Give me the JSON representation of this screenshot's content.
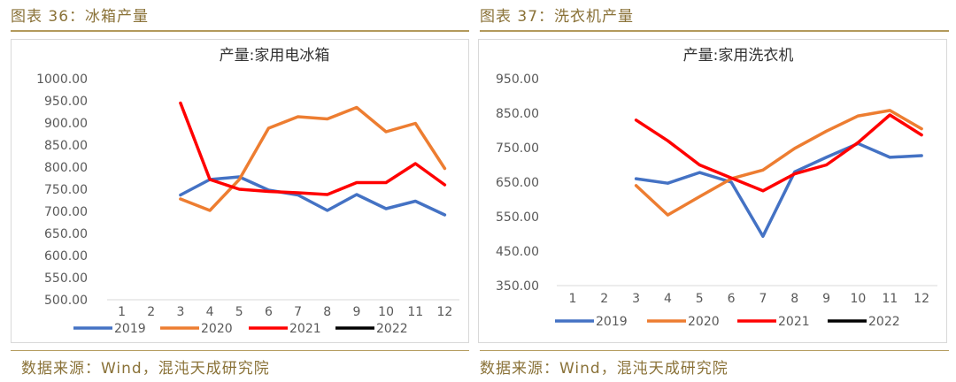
{
  "left": {
    "caption": "图表 36：冰箱产量",
    "source": "数据来源：Wind，混沌天成研究院"
  },
  "right": {
    "caption": "图表 37：洗衣机产量",
    "source": "数据来源：Wind，混沌天成研究院"
  },
  "chart_data": [
    {
      "type": "line",
      "title": "产量:家用电冰箱",
      "xlabel": "",
      "ylabel": "",
      "categories": [
        "1",
        "2",
        "3",
        "4",
        "5",
        "6",
        "7",
        "8",
        "9",
        "10",
        "11",
        "12"
      ],
      "ylim": [
        500,
        1000
      ],
      "yticks": [
        "1000.00",
        "950.00",
        "900.00",
        "850.00",
        "800.00",
        "750.00",
        "700.00",
        "650.00",
        "600.00",
        "550.00",
        "500.00"
      ],
      "legend": "bottom",
      "series": [
        {
          "name": "2019",
          "color": "#4472C4",
          "values": [
            null,
            null,
            737,
            772,
            778,
            748,
            737,
            702,
            738,
            706,
            723,
            692
          ]
        },
        {
          "name": "2020",
          "color": "#ED7D31",
          "values": [
            null,
            null,
            728,
            702,
            772,
            888,
            914,
            909,
            935,
            880,
            899,
            797
          ]
        },
        {
          "name": "2021",
          "color": "#FF0000",
          "values": [
            null,
            null,
            945,
            772,
            750,
            745,
            742,
            738,
            765,
            765,
            808,
            760
          ]
        },
        {
          "name": "2022",
          "color": "#000000",
          "values": [
            null,
            null,
            null,
            null,
            null,
            null,
            null,
            null,
            null,
            null,
            null,
            null
          ]
        }
      ]
    },
    {
      "type": "line",
      "title": "产量:家用洗衣机",
      "xlabel": "",
      "ylabel": "",
      "categories": [
        "1",
        "2",
        "3",
        "4",
        "5",
        "6",
        "7",
        "8",
        "9",
        "10",
        "11",
        "12"
      ],
      "ylim": [
        350,
        950
      ],
      "yticks": [
        "950.00",
        "850.00",
        "750.00",
        "650.00",
        "550.00",
        "450.00",
        "350.00"
      ],
      "legend": "bottom",
      "series": [
        {
          "name": "2019",
          "color": "#4472C4",
          "values": [
            null,
            null,
            660,
            647,
            678,
            650,
            493,
            680,
            722,
            762,
            722,
            727
          ]
        },
        {
          "name": "2020",
          "color": "#ED7D31",
          "values": [
            null,
            null,
            640,
            555,
            608,
            660,
            685,
            748,
            798,
            842,
            858,
            805
          ]
        },
        {
          "name": "2021",
          "color": "#FF0000",
          "values": [
            null,
            null,
            830,
            770,
            700,
            662,
            625,
            674,
            700,
            765,
            845,
            787
          ]
        },
        {
          "name": "2022",
          "color": "#000000",
          "values": [
            null,
            null,
            null,
            null,
            null,
            null,
            null,
            null,
            null,
            null,
            null,
            null
          ]
        }
      ]
    }
  ]
}
